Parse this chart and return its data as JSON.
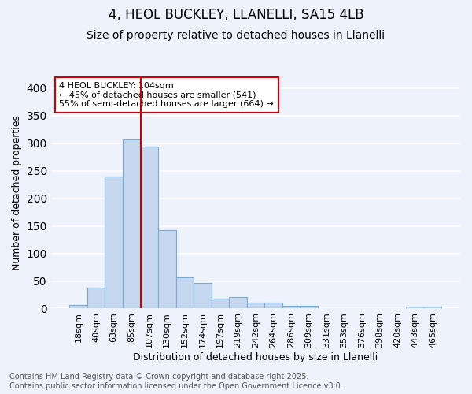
{
  "title1": "4, HEOL BUCKLEY, LLANELLI, SA15 4LB",
  "title2": "Size of property relative to detached houses in Llanelli",
  "xlabel": "Distribution of detached houses by size in Llanelli",
  "ylabel": "Number of detached properties",
  "categories": [
    "18sqm",
    "40sqm",
    "63sqm",
    "85sqm",
    "107sqm",
    "130sqm",
    "152sqm",
    "174sqm",
    "197sqm",
    "219sqm",
    "242sqm",
    "264sqm",
    "286sqm",
    "309sqm",
    "331sqm",
    "353sqm",
    "376sqm",
    "398sqm",
    "420sqm",
    "443sqm",
    "465sqm"
  ],
  "values": [
    7,
    38,
    240,
    307,
    294,
    143,
    57,
    47,
    18,
    20,
    10,
    11,
    5,
    5,
    1,
    1,
    0,
    0,
    1,
    3,
    3
  ],
  "bar_color": "#c5d8f0",
  "bar_edge_color": "#7aaad4",
  "vline_color": "#cc0000",
  "vline_x_index": 4,
  "annotation_text": "4 HEOL BUCKLEY: 104sqm\n← 45% of detached houses are smaller (541)\n55% of semi-detached houses are larger (664) →",
  "annotation_box_facecolor": "#ffffff",
  "annotation_box_edgecolor": "#cc0000",
  "ylim": [
    0,
    420
  ],
  "yticks": [
    0,
    50,
    100,
    150,
    200,
    250,
    300,
    350,
    400
  ],
  "bg_color": "#eef2fa",
  "plot_bg_color": "#eef2fa",
  "grid_color": "#ffffff",
  "footer_text": "Contains HM Land Registry data © Crown copyright and database right 2025.\nContains public sector information licensed under the Open Government Licence v3.0.",
  "title1_fontsize": 12,
  "title2_fontsize": 10,
  "xlabel_fontsize": 9,
  "ylabel_fontsize": 9,
  "tick_fontsize": 8,
  "annotation_fontsize": 8,
  "footer_fontsize": 7
}
